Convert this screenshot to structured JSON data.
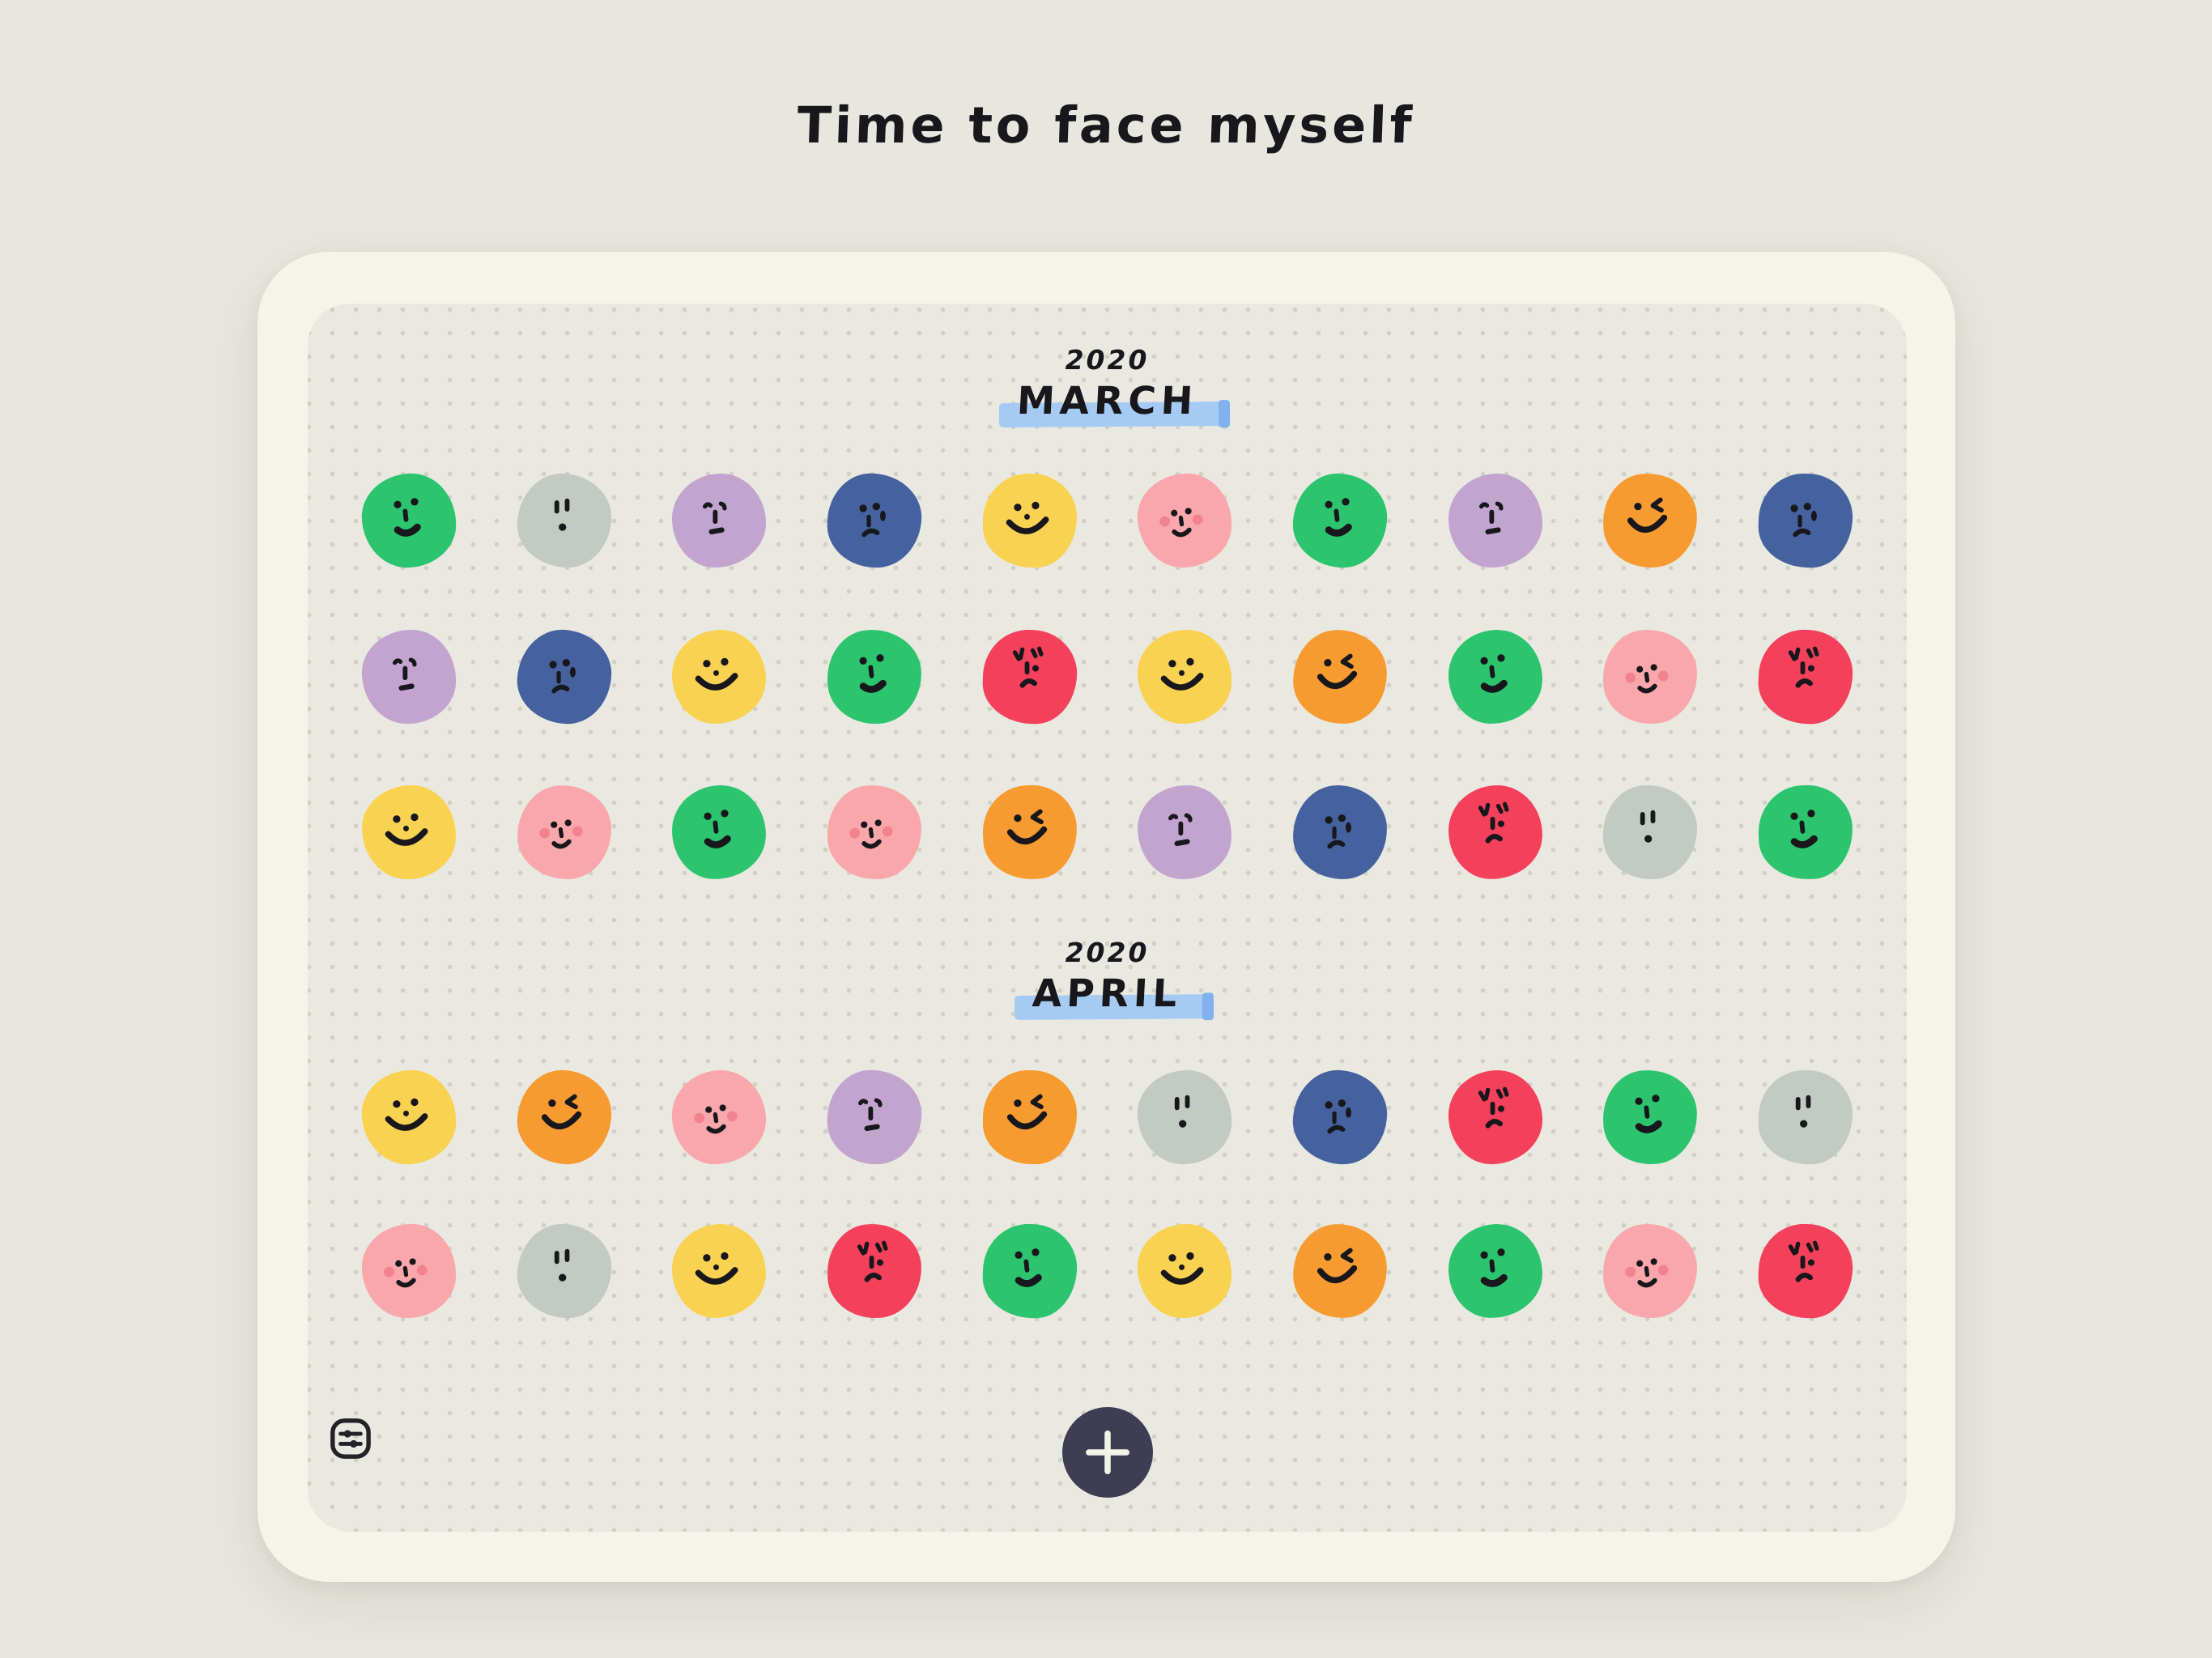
{
  "title": "Time to face myself",
  "months": [
    {
      "year": "2020",
      "name": "MARCH",
      "rows": [
        [
          "content",
          "surprised",
          "neutral",
          "sad",
          "happy",
          "blush",
          "content",
          "neutral",
          "wink",
          "sad"
        ],
        [
          "neutral",
          "sad",
          "happy",
          "content",
          "angry",
          "happy",
          "wink",
          "content",
          "blush",
          "angry"
        ],
        [
          "happy",
          "blush",
          "content",
          "blush",
          "wink",
          "neutral",
          "sad",
          "angry",
          "surprised",
          "content"
        ]
      ]
    },
    {
      "year": "2020",
      "name": "APRIL",
      "rows": [
        [
          "happy",
          "wink",
          "blush",
          "neutral",
          "wink",
          "surprised",
          "sad",
          "angry",
          "content",
          "surprised"
        ],
        [
          "blush",
          "surprised",
          "happy",
          "angry",
          "content",
          "happy",
          "wink",
          "content",
          "blush",
          "angry"
        ]
      ]
    }
  ],
  "palette": {
    "happy": "#f9d252",
    "wink": "#f79b30",
    "content": "#2cc46f",
    "blush": "#f9a7aa",
    "neutral": "#c2a4cf",
    "surprised": "#c2cac3",
    "sad": "#45629e",
    "angry": "#f4405b"
  },
  "colors": {
    "page_bg": "#e8e7df",
    "card_frame": "#f5f4ea",
    "canvas_bg": "#eae9e1",
    "dot": "#d1d0c7",
    "ink": "#17171c",
    "highlight": "#a5cbf4",
    "highlight_edge": "#82b2ee",
    "fab_bg": "#3e3d53",
    "fab_icon": "#f4f3ea",
    "blush_cheek": "#f2838e"
  },
  "footer": {
    "settings_icon": "sliders-icon",
    "add_icon": "plus-icon"
  }
}
